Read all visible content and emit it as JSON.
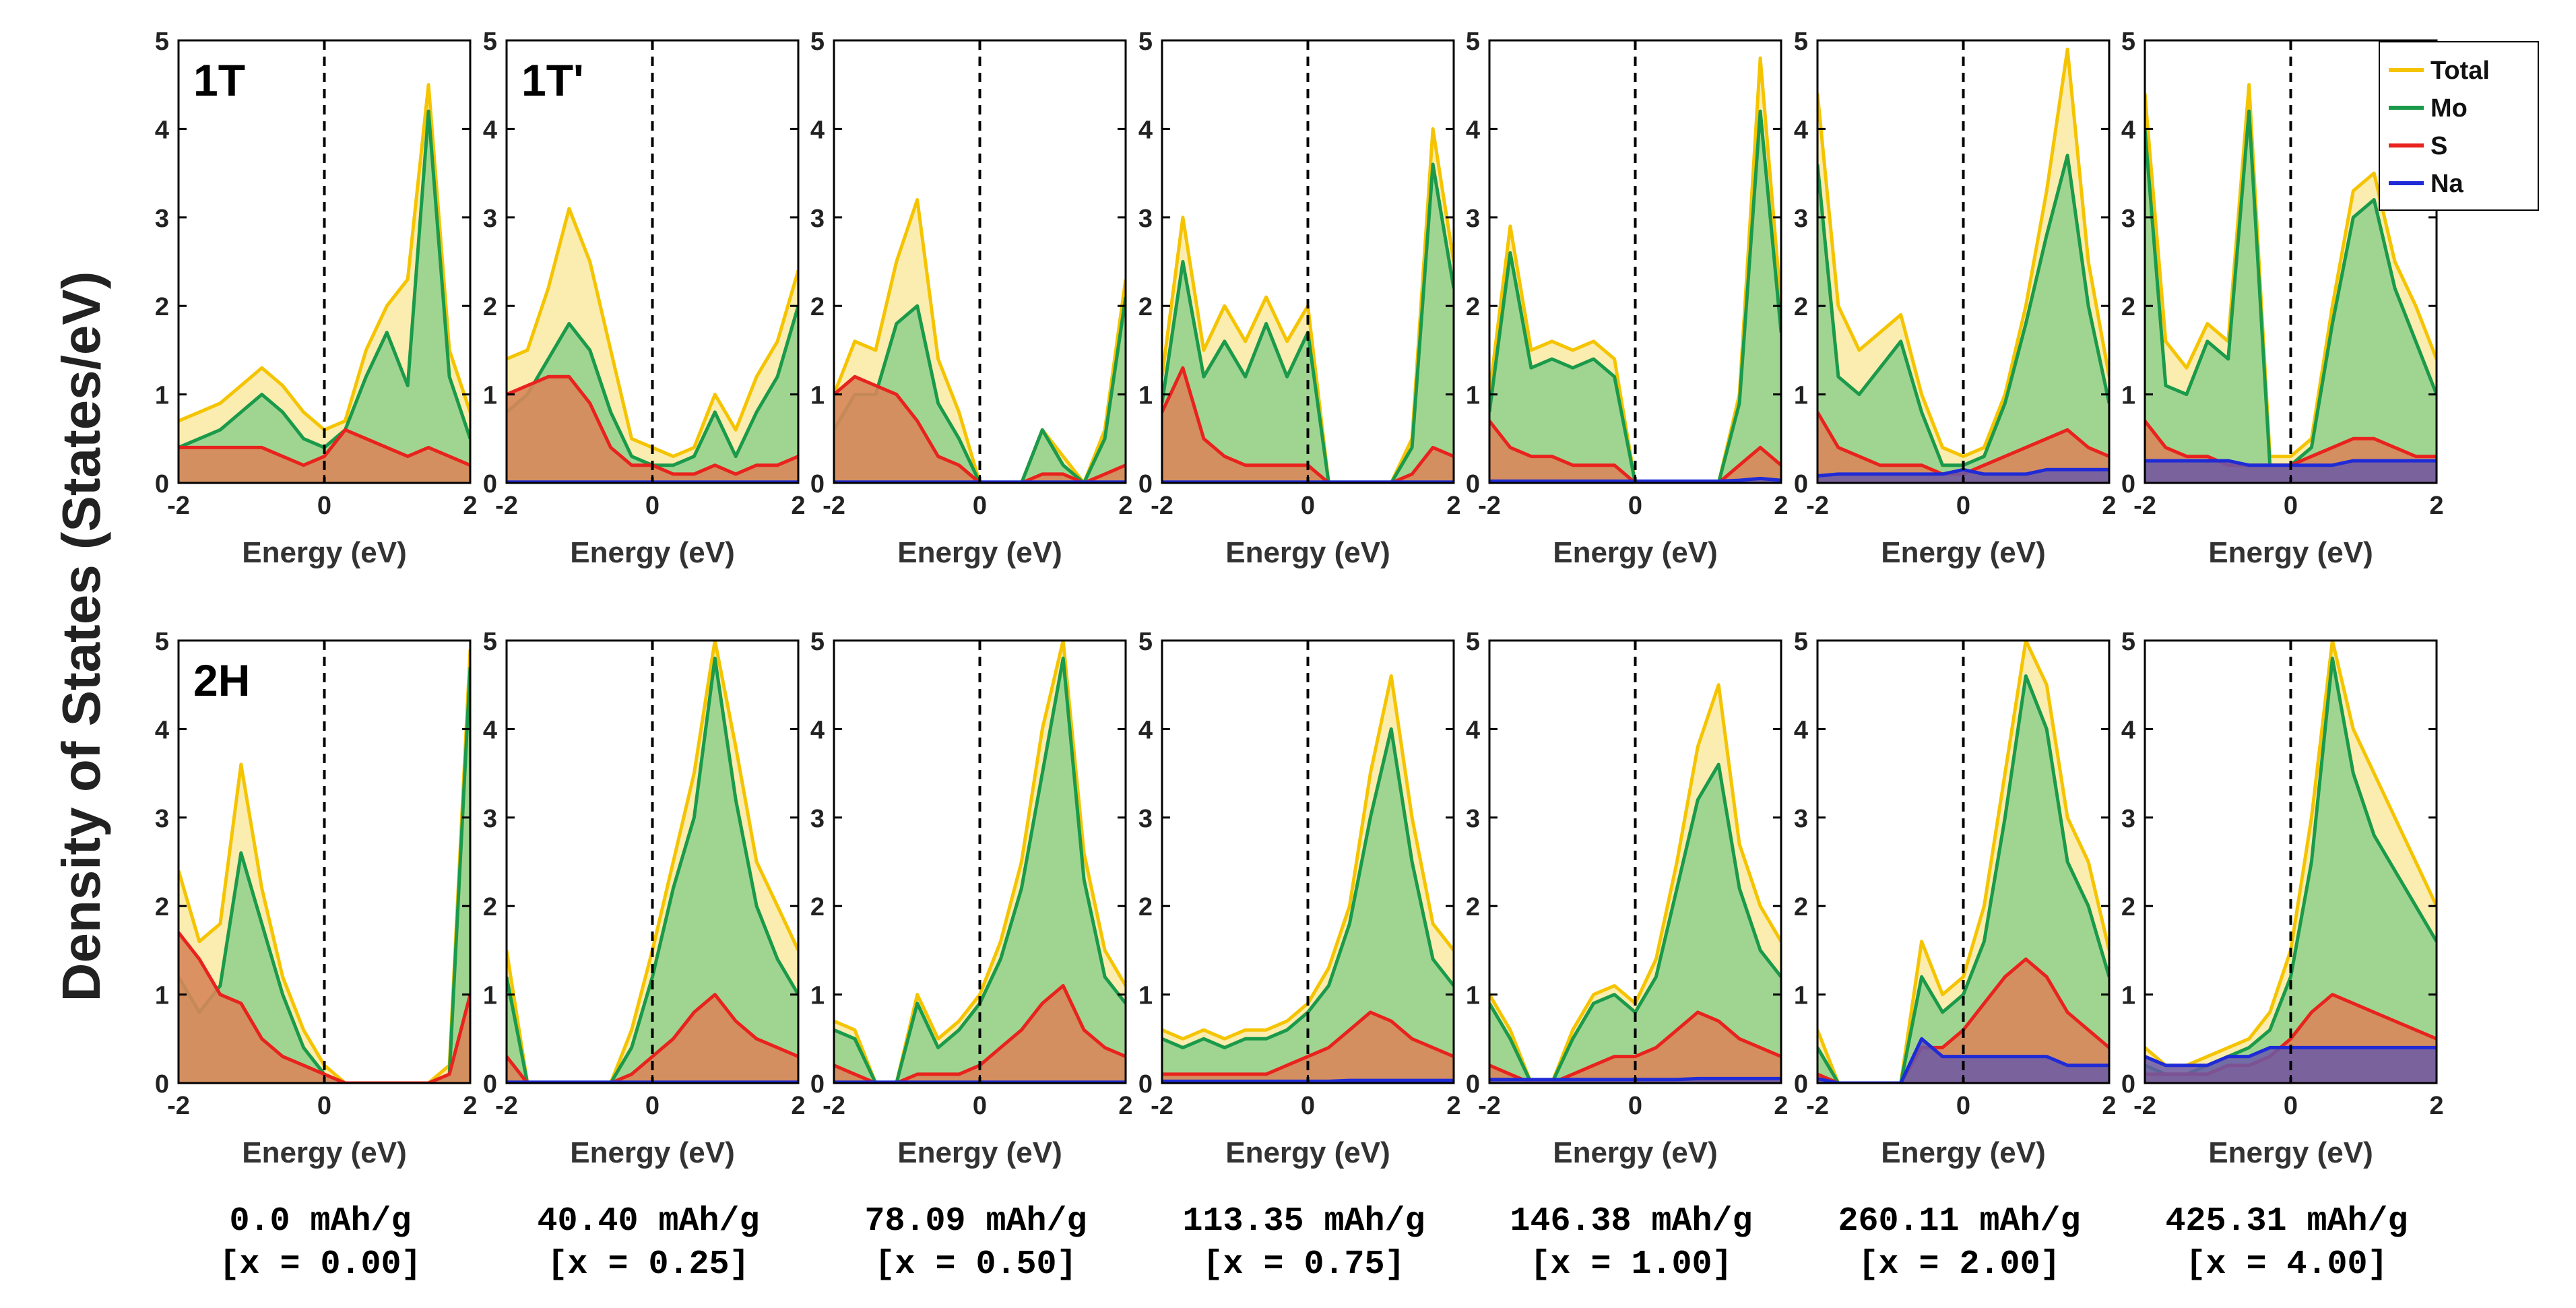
{
  "chart_data": {
    "type": "area",
    "ylabel": "Density of States (States/eV)",
    "xlabel": "Energy (eV)",
    "xlim": [
      -2,
      2
    ],
    "ylim": [
      0,
      5
    ],
    "x_ticks": [
      -2,
      0,
      2
    ],
    "y_ticks": [
      0,
      1,
      2,
      3,
      4,
      5
    ],
    "fermi_level_x": 0,
    "legend": {
      "position": "top-right",
      "entries": [
        {
          "name": "Total",
          "color": "#f5c400"
        },
        {
          "name": "Mo",
          "color": "#1a9a4a"
        },
        {
          "name": "S",
          "color": "#e8231e"
        },
        {
          "name": "Na",
          "color": "#1f2bd6"
        }
      ]
    },
    "x_grid": [
      -2,
      -1.5,
      -1,
      -0.5,
      0,
      0.5,
      1,
      1.5,
      2
    ],
    "captions": [
      {
        "capacity": "0.0 mAh/g",
        "x_value": "[x = 0.00]"
      },
      {
        "capacity": "40.40 mAh/g",
        "x_value": "[x = 0.25]"
      },
      {
        "capacity": "78.09 mAh/g",
        "x_value": "[x = 0.50]"
      },
      {
        "capacity": "113.35 mAh/g",
        "x_value": "[x = 0.75]"
      },
      {
        "capacity": "146.38 mAh/g",
        "x_value": "[x = 1.00]"
      },
      {
        "capacity": "260.11 mAh/g",
        "x_value": "[x = 2.00]"
      },
      {
        "capacity": "425.31 mAh/g",
        "x_value": "[x = 4.00]"
      }
    ],
    "rows": [
      {
        "row_label": "",
        "panels": [
          {
            "label": "1T",
            "Total": [
              0.7,
              0.8,
              0.9,
              1.1,
              1.3,
              1.1,
              0.8,
              0.6,
              0.7,
              1.5,
              2.0,
              2.3,
              4.5,
              1.5,
              0.8
            ],
            "Mo": [
              0.4,
              0.5,
              0.6,
              0.8,
              1.0,
              0.8,
              0.5,
              0.4,
              0.6,
              1.2,
              1.7,
              1.1,
              4.2,
              1.2,
              0.5
            ],
            "S": [
              0.4,
              0.4,
              0.4,
              0.4,
              0.4,
              0.3,
              0.2,
              0.3,
              0.6,
              0.5,
              0.4,
              0.3,
              0.4,
              0.3,
              0.2
            ],
            "Na": null
          },
          {
            "label": "1T'",
            "Total": [
              1.4,
              1.5,
              2.2,
              3.1,
              2.5,
              1.5,
              0.5,
              0.4,
              0.3,
              0.4,
              1.0,
              0.6,
              1.2,
              1.6,
              2.4
            ],
            "Mo": [
              0.8,
              1.0,
              1.4,
              1.8,
              1.5,
              0.8,
              0.3,
              0.2,
              0.2,
              0.3,
              0.8,
              0.3,
              0.8,
              1.2,
              2.0
            ],
            "S": [
              1.0,
              1.1,
              1.2,
              1.2,
              0.9,
              0.4,
              0.2,
              0.2,
              0.1,
              0.1,
              0.2,
              0.1,
              0.2,
              0.2,
              0.3
            ],
            "Na": [
              0.01,
              0.01,
              0.01,
              0.01,
              0.01,
              0.01,
              0.01,
              0.01,
              0.01,
              0.01,
              0.01,
              0.01,
              0.01,
              0.01,
              0.01
            ]
          },
          {
            "label": "",
            "Total": [
              1.0,
              1.6,
              1.5,
              2.5,
              3.2,
              1.4,
              0.8,
              0.0,
              0.0,
              0.0,
              0.6,
              0.3,
              0.0,
              0.6,
              2.3
            ],
            "Mo": [
              0.6,
              1.0,
              1.0,
              1.8,
              2.0,
              0.9,
              0.5,
              0.0,
              0.0,
              0.0,
              0.6,
              0.2,
              0.0,
              0.5,
              2.1
            ],
            "S": [
              1.0,
              1.2,
              1.1,
              1.0,
              0.7,
              0.3,
              0.2,
              0.0,
              0.0,
              0.0,
              0.1,
              0.1,
              0.0,
              0.1,
              0.2
            ],
            "Na": [
              0.01,
              0.01,
              0.01,
              0.01,
              0.01,
              0.01,
              0.01,
              0.01,
              0.01,
              0.01,
              0.01,
              0.01,
              0.01,
              0.01,
              0.01
            ]
          },
          {
            "label": "",
            "Total": [
              1.2,
              3.0,
              1.5,
              2.0,
              1.6,
              2.1,
              1.6,
              2.0,
              0.0,
              0.0,
              0.0,
              0.0,
              0.5,
              4.0,
              2.5
            ],
            "Mo": [
              0.9,
              2.5,
              1.2,
              1.6,
              1.2,
              1.8,
              1.2,
              1.7,
              0.0,
              0.0,
              0.0,
              0.0,
              0.4,
              3.6,
              2.2
            ],
            "S": [
              0.8,
              1.3,
              0.5,
              0.3,
              0.2,
              0.2,
              0.2,
              0.2,
              0.0,
              0.0,
              0.0,
              0.0,
              0.1,
              0.4,
              0.3
            ],
            "Na": [
              0.01,
              0.01,
              0.01,
              0.01,
              0.01,
              0.01,
              0.01,
              0.01,
              0.01,
              0.01,
              0.01,
              0.01,
              0.01,
              0.01,
              0.01
            ]
          },
          {
            "label": "",
            "Total": [
              1.0,
              2.9,
              1.5,
              1.6,
              1.5,
              1.6,
              1.4,
              0.0,
              0.0,
              0.0,
              0.0,
              0.0,
              1.0,
              4.8,
              2.0
            ],
            "Mo": [
              0.8,
              2.6,
              1.3,
              1.4,
              1.3,
              1.4,
              1.2,
              0.0,
              0.0,
              0.0,
              0.0,
              0.0,
              0.9,
              4.2,
              1.7
            ],
            "S": [
              0.7,
              0.4,
              0.3,
              0.3,
              0.2,
              0.2,
              0.2,
              0.0,
              0.0,
              0.0,
              0.0,
              0.0,
              0.2,
              0.4,
              0.2
            ],
            "Na": [
              0.02,
              0.02,
              0.02,
              0.02,
              0.02,
              0.02,
              0.02,
              0.02,
              0.02,
              0.02,
              0.02,
              0.02,
              0.03,
              0.05,
              0.03
            ]
          },
          {
            "label": "",
            "Total": [
              4.4,
              2.0,
              1.5,
              1.7,
              1.9,
              1.0,
              0.4,
              0.3,
              0.4,
              1.0,
              2.0,
              3.3,
              4.9,
              2.5,
              1.2
            ],
            "Mo": [
              3.6,
              1.2,
              1.0,
              1.3,
              1.6,
              0.8,
              0.2,
              0.2,
              0.3,
              0.9,
              1.8,
              2.8,
              3.7,
              2.0,
              0.9
            ],
            "S": [
              0.8,
              0.4,
              0.3,
              0.2,
              0.2,
              0.2,
              0.1,
              0.1,
              0.2,
              0.3,
              0.4,
              0.5,
              0.6,
              0.4,
              0.3
            ],
            "Na": [
              0.08,
              0.1,
              0.1,
              0.1,
              0.1,
              0.1,
              0.1,
              0.15,
              0.1,
              0.1,
              0.1,
              0.15,
              0.15,
              0.15,
              0.15
            ]
          },
          {
            "label": "",
            "Total": [
              4.4,
              1.6,
              1.3,
              1.8,
              1.6,
              4.5,
              0.3,
              0.3,
              0.5,
              2.0,
              3.3,
              3.5,
              2.5,
              2.0,
              1.4
            ],
            "Mo": [
              4.0,
              1.1,
              1.0,
              1.6,
              1.4,
              4.2,
              0.2,
              0.2,
              0.4,
              1.8,
              3.0,
              3.2,
              2.2,
              1.6,
              1.0
            ],
            "S": [
              0.7,
              0.4,
              0.3,
              0.3,
              0.2,
              0.2,
              0.2,
              0.2,
              0.3,
              0.4,
              0.5,
              0.5,
              0.4,
              0.3,
              0.3
            ],
            "Na": [
              0.25,
              0.25,
              0.25,
              0.25,
              0.25,
              0.2,
              0.2,
              0.2,
              0.2,
              0.2,
              0.25,
              0.25,
              0.25,
              0.25,
              0.25
            ]
          }
        ]
      },
      {
        "row_label": "",
        "panels": [
          {
            "label": "2H",
            "Total": [
              2.4,
              1.6,
              1.8,
              3.6,
              2.2,
              1.2,
              0.6,
              0.2,
              0.0,
              0.0,
              0.0,
              0.0,
              0.0,
              0.2,
              4.9
            ],
            "Mo": [
              1.2,
              0.8,
              1.1,
              2.6,
              1.8,
              1.0,
              0.4,
              0.1,
              0.0,
              0.0,
              0.0,
              0.0,
              0.0,
              0.1,
              4.7
            ],
            "S": [
              1.7,
              1.4,
              1.0,
              0.9,
              0.5,
              0.3,
              0.2,
              0.1,
              0.0,
              0.0,
              0.0,
              0.0,
              0.0,
              0.1,
              1.0
            ],
            "Na": null
          },
          {
            "label": "",
            "Total": [
              1.5,
              0.0,
              0.0,
              0.0,
              0.0,
              0.0,
              0.6,
              1.5,
              2.5,
              3.5,
              5.0,
              3.8,
              2.5,
              2.0,
              1.5
            ],
            "Mo": [
              1.2,
              0.0,
              0.0,
              0.0,
              0.0,
              0.0,
              0.4,
              1.2,
              2.2,
              3.0,
              4.8,
              3.2,
              2.0,
              1.4,
              1.0
            ],
            "S": [
              0.3,
              0.0,
              0.0,
              0.0,
              0.0,
              0.0,
              0.1,
              0.3,
              0.5,
              0.8,
              1.0,
              0.7,
              0.5,
              0.4,
              0.3
            ],
            "Na": [
              0.01,
              0.01,
              0.01,
              0.01,
              0.01,
              0.01,
              0.01,
              0.01,
              0.01,
              0.01,
              0.01,
              0.01,
              0.01,
              0.01,
              0.01
            ]
          },
          {
            "label": "",
            "Total": [
              0.7,
              0.6,
              0.0,
              0.0,
              1.0,
              0.5,
              0.7,
              1.0,
              1.6,
              2.5,
              4.0,
              5.0,
              2.6,
              1.5,
              1.1
            ],
            "Mo": [
              0.6,
              0.5,
              0.0,
              0.0,
              0.9,
              0.4,
              0.6,
              0.9,
              1.4,
              2.2,
              3.5,
              4.8,
              2.3,
              1.2,
              0.9
            ],
            "S": [
              0.2,
              0.1,
              0.0,
              0.0,
              0.1,
              0.1,
              0.1,
              0.2,
              0.4,
              0.6,
              0.9,
              1.1,
              0.6,
              0.4,
              0.3
            ],
            "Na": [
              0.01,
              0.01,
              0.01,
              0.01,
              0.01,
              0.01,
              0.01,
              0.01,
              0.01,
              0.01,
              0.01,
              0.01,
              0.01,
              0.01,
              0.01
            ]
          },
          {
            "label": "",
            "Total": [
              0.6,
              0.5,
              0.6,
              0.5,
              0.6,
              0.6,
              0.7,
              0.9,
              1.3,
              2.0,
              3.5,
              4.6,
              3.0,
              1.8,
              1.5
            ],
            "Mo": [
              0.5,
              0.4,
              0.5,
              0.4,
              0.5,
              0.5,
              0.6,
              0.8,
              1.1,
              1.8,
              3.0,
              4.0,
              2.5,
              1.4,
              1.1
            ],
            "S": [
              0.1,
              0.1,
              0.1,
              0.1,
              0.1,
              0.1,
              0.2,
              0.3,
              0.4,
              0.6,
              0.8,
              0.7,
              0.5,
              0.4,
              0.3
            ],
            "Na": [
              0.02,
              0.02,
              0.02,
              0.02,
              0.02,
              0.02,
              0.02,
              0.02,
              0.02,
              0.03,
              0.03,
              0.03,
              0.03,
              0.03,
              0.03
            ]
          },
          {
            "label": "",
            "Total": [
              1.0,
              0.6,
              0.0,
              0.0,
              0.6,
              1.0,
              1.1,
              0.9,
              1.4,
              2.5,
              3.8,
              4.5,
              2.7,
              2.0,
              1.6
            ],
            "Mo": [
              0.9,
              0.5,
              0.0,
              0.0,
              0.5,
              0.9,
              1.0,
              0.8,
              1.2,
              2.2,
              3.2,
              3.6,
              2.2,
              1.5,
              1.2
            ],
            "S": [
              0.2,
              0.1,
              0.0,
              0.0,
              0.1,
              0.2,
              0.3,
              0.3,
              0.4,
              0.6,
              0.8,
              0.7,
              0.5,
              0.4,
              0.3
            ],
            "Na": [
              0.04,
              0.04,
              0.04,
              0.04,
              0.04,
              0.04,
              0.04,
              0.04,
              0.04,
              0.04,
              0.05,
              0.05,
              0.05,
              0.05,
              0.05
            ]
          },
          {
            "label": "",
            "Total": [
              0.6,
              0.0,
              0.0,
              0.0,
              0.0,
              1.6,
              1.0,
              1.2,
              2.0,
              3.5,
              5.0,
              4.5,
              3.0,
              2.5,
              1.5
            ],
            "Mo": [
              0.4,
              0.0,
              0.0,
              0.0,
              0.0,
              1.2,
              0.8,
              1.0,
              1.6,
              3.0,
              4.6,
              4.0,
              2.5,
              2.0,
              1.2
            ],
            "S": [
              0.1,
              0.0,
              0.0,
              0.0,
              0.0,
              0.4,
              0.4,
              0.6,
              0.9,
              1.2,
              1.4,
              1.2,
              0.8,
              0.6,
              0.4
            ],
            "Na": [
              0.05,
              0.0,
              0.0,
              0.0,
              0.0,
              0.5,
              0.3,
              0.3,
              0.3,
              0.3,
              0.3,
              0.3,
              0.2,
              0.2,
              0.2
            ]
          },
          {
            "label": "",
            "Total": [
              0.4,
              0.2,
              0.2,
              0.3,
              0.4,
              0.5,
              0.8,
              1.5,
              3.0,
              5.0,
              4.0,
              3.5,
              3.0,
              2.5,
              2.0
            ],
            "Mo": [
              0.2,
              0.1,
              0.1,
              0.2,
              0.3,
              0.4,
              0.6,
              1.2,
              2.5,
              4.8,
              3.5,
              2.8,
              2.4,
              2.0,
              1.6
            ],
            "S": [
              0.1,
              0.1,
              0.1,
              0.1,
              0.2,
              0.2,
              0.3,
              0.5,
              0.8,
              1.0,
              0.9,
              0.8,
              0.7,
              0.6,
              0.5
            ],
            "Na": [
              0.3,
              0.2,
              0.2,
              0.2,
              0.3,
              0.3,
              0.4,
              0.4,
              0.4,
              0.4,
              0.4,
              0.4,
              0.4,
              0.4,
              0.4
            ]
          }
        ]
      }
    ]
  }
}
